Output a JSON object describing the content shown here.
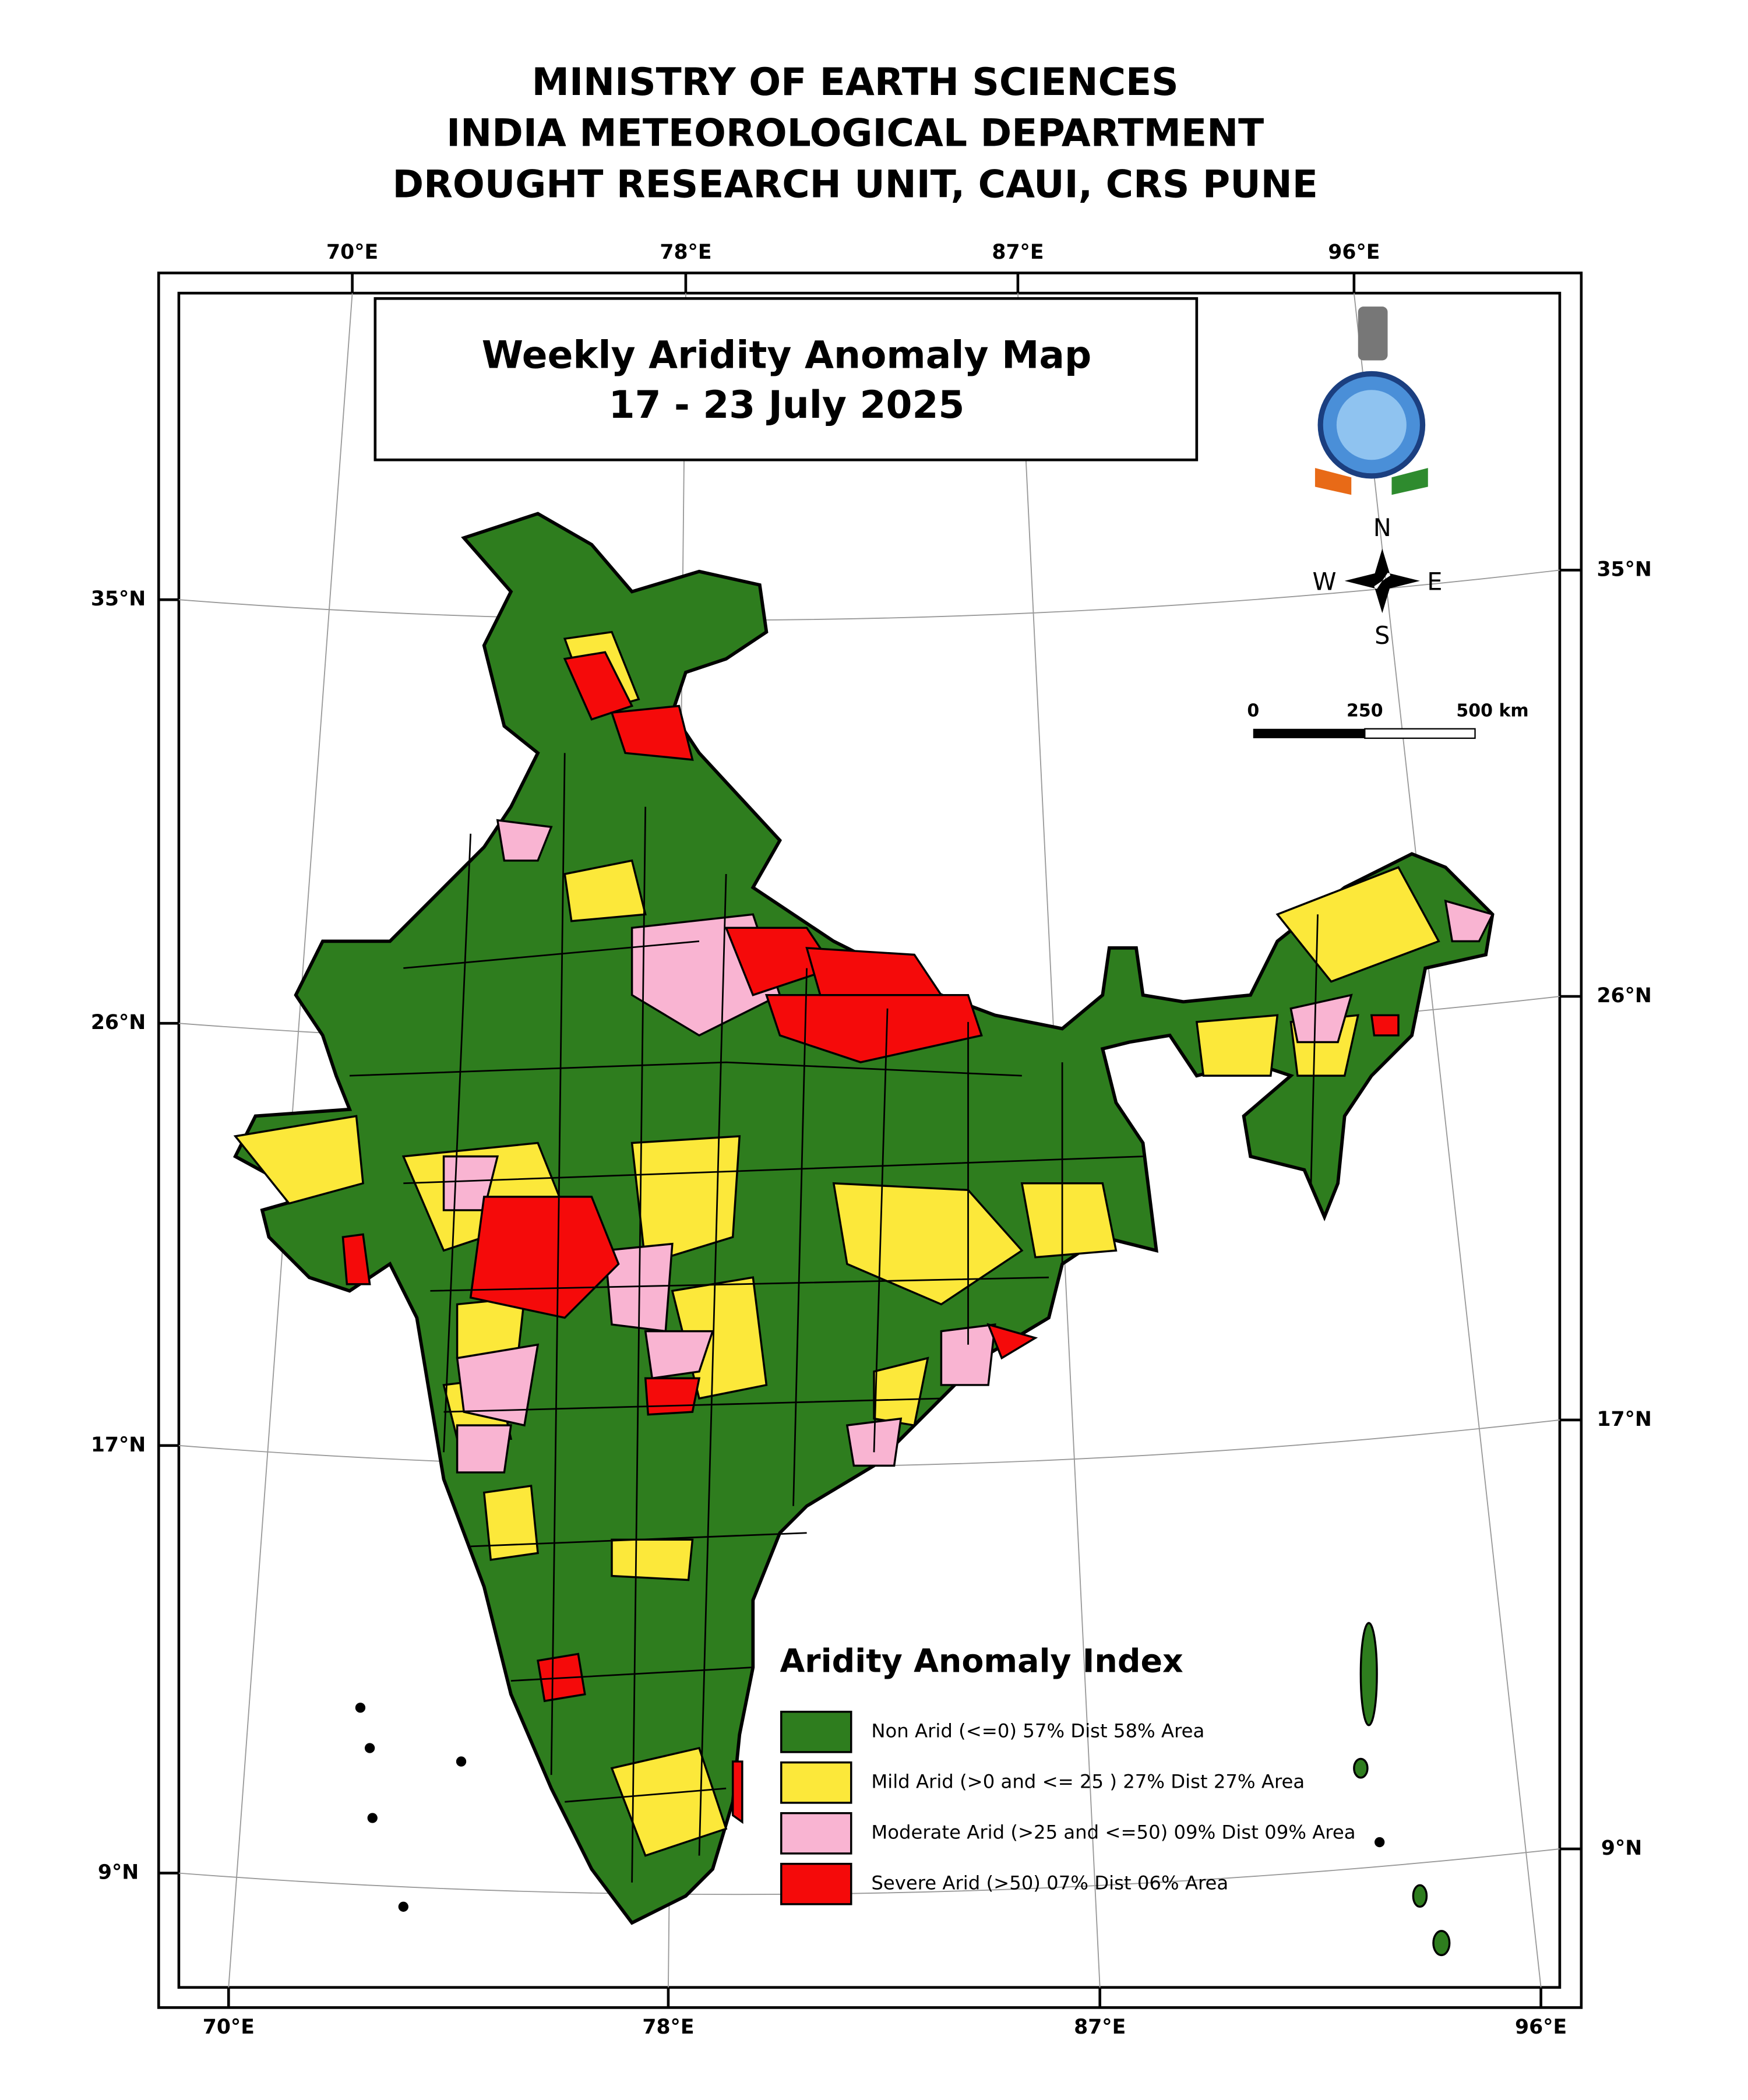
{
  "header": {
    "lines": [
      "MINISTRY OF EARTH SCIENCES",
      "INDIA METEOROLOGICAL DEPARTMENT",
      "DROUGHT RESEARCH UNIT, CAUI, CRS PUNE"
    ]
  },
  "map": {
    "title": "Weekly Aridity Anomaly Map",
    "date": "17 - 23 July  2025",
    "top_labels": [
      "70°E",
      "78°E",
      "87°E",
      "96°E"
    ],
    "bottom_labels": [
      "70°E",
      "78°E",
      "87°E",
      "96°E"
    ],
    "left_labels": [
      "35°N",
      "26°N",
      "17°N",
      "9°N"
    ],
    "right_labels": [
      "35°N",
      "26°N",
      "17°N",
      "9°N"
    ],
    "compass": {
      "n": "N",
      "s": "S",
      "e": "E",
      "w": "W"
    },
    "scale": [
      "0",
      "250",
      "500 km"
    ],
    "legend": {
      "title": "Aridity Anomaly Index",
      "items": [
        {
          "label": "Non Arid (<=0) 57% Dist 58% Area",
          "color": "#2e7d1e"
        },
        {
          "label": "Mild Arid (>0 and <= 25 ) 27% Dist  27% Area",
          "color": "#fce83a"
        },
        {
          "label": "Moderate Arid (>25 and <=50) 09% Dist  09% Area",
          "color": "#f9b4d2"
        },
        {
          "label": "Severe Arid (>50) 07% Dist  06% Area",
          "color": "#f50a0a"
        }
      ]
    }
  }
}
